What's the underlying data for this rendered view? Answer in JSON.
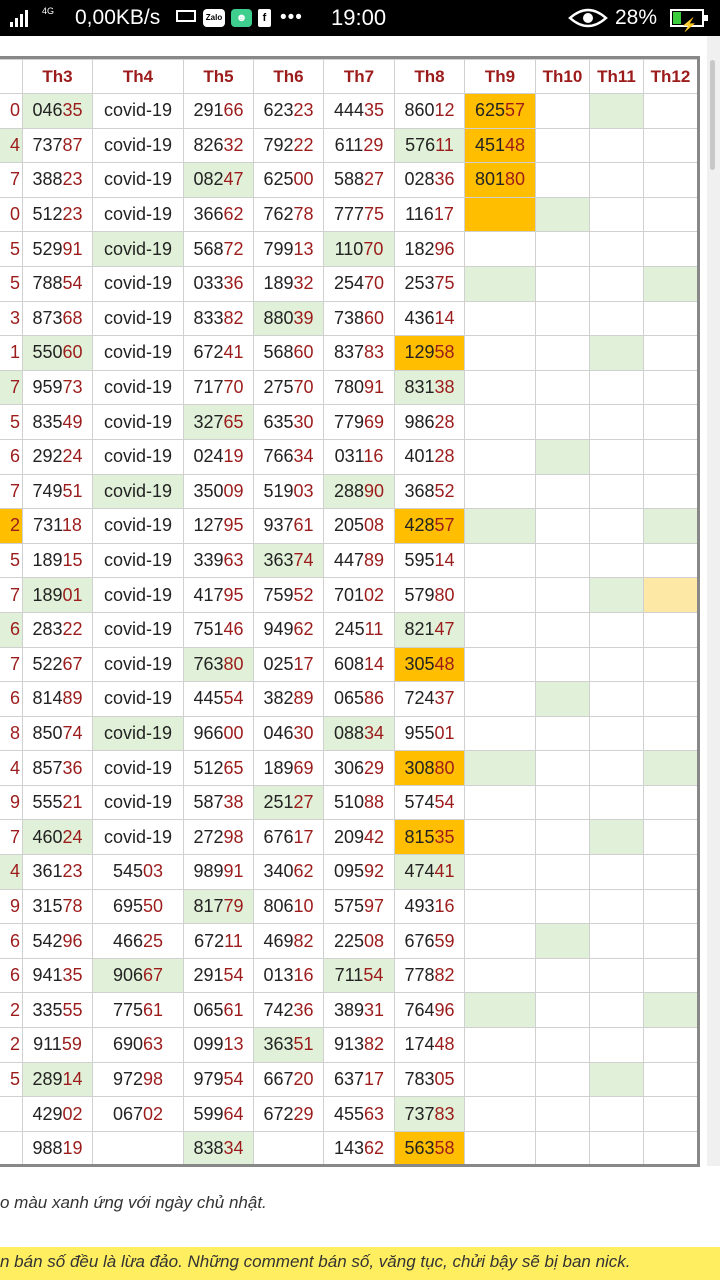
{
  "status_bar": {
    "network_type": "4G",
    "net_speed": "0,00KB/s",
    "time": "19:00",
    "battery_percent": "28%",
    "battery_level": 0.28,
    "zalo_label": "Zalo",
    "fb_label": "f",
    "more_label": "•••"
  },
  "colors": {
    "accent_red": "#9c1c1c",
    "green_cell": "#e1f0d8",
    "orange_cell": "#ffbf00",
    "yellow_cell": "#fde8a6"
  },
  "table": {
    "columns": [
      "",
      "Th3",
      "Th4",
      "Th5",
      "Th6",
      "Th7",
      "Th8",
      "Th9",
      "Th10",
      "Th11",
      "Th12"
    ],
    "rows": [
      {
        "cells": [
          "0",
          "04635",
          "covid-19",
          "29166",
          "62323",
          "44435",
          "86012",
          "62557",
          "",
          "",
          ""
        ],
        "bg": [
          "",
          "g",
          "",
          "",
          "",
          "",
          "",
          "o",
          "",
          "g",
          ""
        ]
      },
      {
        "cells": [
          "4",
          "73787",
          "covid-19",
          "82632",
          "79222",
          "61129",
          "57611",
          "45148",
          "",
          "",
          ""
        ],
        "bg": [
          "g",
          "",
          "",
          "",
          "",
          "",
          "g",
          "o",
          "",
          "",
          ""
        ]
      },
      {
        "cells": [
          "7",
          "38823",
          "covid-19",
          "08247",
          "62500",
          "58827",
          "02836",
          "80180",
          "",
          "",
          ""
        ],
        "bg": [
          "",
          "",
          "",
          "g",
          "",
          "",
          "",
          "o",
          "",
          "",
          ""
        ]
      },
      {
        "cells": [
          "0",
          "51223",
          "covid-19",
          "36662",
          "76278",
          "77775",
          "11617",
          "",
          "",
          "",
          ""
        ],
        "bg": [
          "",
          "",
          "",
          "",
          "",
          "",
          "",
          "o",
          "g",
          "",
          ""
        ]
      },
      {
        "cells": [
          "5",
          "52991",
          "covid-19",
          "56872",
          "79913",
          "11070",
          "18296",
          "",
          "",
          "",
          ""
        ],
        "bg": [
          "",
          "",
          "g",
          "",
          "",
          "g",
          "",
          "",
          "",
          "",
          ""
        ]
      },
      {
        "cells": [
          "5",
          "78854",
          "covid-19",
          "03336",
          "18932",
          "25470",
          "25375",
          "",
          "",
          "",
          ""
        ],
        "bg": [
          "",
          "",
          "",
          "",
          "",
          "",
          "",
          "g",
          "",
          "",
          "g"
        ]
      },
      {
        "cells": [
          "3",
          "87368",
          "covid-19",
          "83382",
          "88039",
          "73860",
          "43614",
          "",
          "",
          "",
          ""
        ],
        "bg": [
          "",
          "",
          "",
          "",
          "g",
          "",
          "",
          "",
          "",
          "",
          ""
        ]
      },
      {
        "cells": [
          "1",
          "55060",
          "covid-19",
          "67241",
          "56860",
          "83783",
          "12958",
          "",
          "",
          "",
          ""
        ],
        "bg": [
          "",
          "g",
          "",
          "",
          "",
          "",
          "o",
          "",
          "",
          "g",
          ""
        ]
      },
      {
        "cells": [
          "7",
          "95973",
          "covid-19",
          "71770",
          "27570",
          "78091",
          "83138",
          "",
          "",
          "",
          ""
        ],
        "bg": [
          "g",
          "",
          "",
          "",
          "",
          "",
          "g",
          "",
          "",
          "",
          ""
        ]
      },
      {
        "cells": [
          "5",
          "83549",
          "covid-19",
          "32765",
          "63530",
          "77969",
          "98628",
          "",
          "",
          "",
          ""
        ],
        "bg": [
          "",
          "",
          "",
          "g",
          "",
          "",
          "",
          "",
          "",
          "",
          ""
        ]
      },
      {
        "cells": [
          "6",
          "29224",
          "covid-19",
          "02419",
          "76634",
          "03116",
          "40128",
          "",
          "",
          "",
          ""
        ],
        "bg": [
          "",
          "",
          "",
          "",
          "",
          "",
          "",
          "",
          "g",
          "",
          ""
        ]
      },
      {
        "cells": [
          "7",
          "74951",
          "covid-19",
          "35009",
          "51903",
          "28890",
          "36852",
          "",
          "",
          "",
          ""
        ],
        "bg": [
          "",
          "",
          "g",
          "",
          "",
          "g",
          "",
          "",
          "",
          "",
          ""
        ]
      },
      {
        "cells": [
          "2",
          "73118",
          "covid-19",
          "12795",
          "93761",
          "20508",
          "42857",
          "",
          "",
          "",
          ""
        ],
        "bg": [
          "o",
          "",
          "",
          "",
          "",
          "",
          "o",
          "g",
          "",
          "",
          "g"
        ]
      },
      {
        "cells": [
          "5",
          "18915",
          "covid-19",
          "33963",
          "36374",
          "44789",
          "59514",
          "",
          "",
          "",
          ""
        ],
        "bg": [
          "",
          "",
          "",
          "",
          "g",
          "",
          "",
          "",
          "",
          "",
          ""
        ]
      },
      {
        "cells": [
          "7",
          "18901",
          "covid-19",
          "41795",
          "75952",
          "70102",
          "57980",
          "",
          "",
          "",
          ""
        ],
        "bg": [
          "",
          "g",
          "",
          "",
          "",
          "",
          "",
          "",
          "",
          "g",
          "y"
        ]
      },
      {
        "cells": [
          "6",
          "28322",
          "covid-19",
          "75146",
          "94962",
          "24511",
          "82147",
          "",
          "",
          "",
          ""
        ],
        "bg": [
          "g",
          "",
          "",
          "",
          "",
          "",
          "g",
          "",
          "",
          "",
          ""
        ]
      },
      {
        "cells": [
          "7",
          "52267",
          "covid-19",
          "76380",
          "02517",
          "60814",
          "30548",
          "",
          "",
          "",
          ""
        ],
        "bg": [
          "",
          "",
          "",
          "g",
          "",
          "",
          "o",
          "",
          "",
          "",
          ""
        ]
      },
      {
        "cells": [
          "6",
          "81489",
          "covid-19",
          "44554",
          "38289",
          "06586",
          "72437",
          "",
          "",
          "",
          ""
        ],
        "bg": [
          "",
          "",
          "",
          "",
          "",
          "",
          "",
          "",
          "g",
          "",
          ""
        ]
      },
      {
        "cells": [
          "8",
          "85074",
          "covid-19",
          "96600",
          "04630",
          "08834",
          "95501",
          "",
          "",
          "",
          ""
        ],
        "bg": [
          "",
          "",
          "g",
          "",
          "",
          "g",
          "",
          "",
          "",
          "",
          ""
        ]
      },
      {
        "cells": [
          "4",
          "85736",
          "covid-19",
          "51265",
          "18969",
          "30629",
          "30880",
          "",
          "",
          "",
          ""
        ],
        "bg": [
          "",
          "",
          "",
          "",
          "",
          "",
          "o",
          "g",
          "",
          "",
          "g"
        ]
      },
      {
        "cells": [
          "9",
          "55521",
          "covid-19",
          "58738",
          "25127",
          "51088",
          "57454",
          "",
          "",
          "",
          ""
        ],
        "bg": [
          "",
          "",
          "",
          "",
          "g",
          "",
          "",
          "",
          "",
          "",
          ""
        ]
      },
      {
        "cells": [
          "7",
          "46024",
          "covid-19",
          "27298",
          "67617",
          "20942",
          "81535",
          "",
          "",
          "",
          ""
        ],
        "bg": [
          "",
          "g",
          "",
          "",
          "",
          "",
          "o",
          "",
          "",
          "g",
          ""
        ]
      },
      {
        "cells": [
          "4",
          "36123",
          "54503",
          "98991",
          "34062",
          "09592",
          "47441",
          "",
          "",
          "",
          ""
        ],
        "bg": [
          "g",
          "",
          "",
          "",
          "",
          "",
          "g",
          "",
          "",
          "",
          ""
        ]
      },
      {
        "cells": [
          "9",
          "31578",
          "69550",
          "81779",
          "80610",
          "57597",
          "49316",
          "",
          "",
          "",
          ""
        ],
        "bg": [
          "",
          "",
          "",
          "g",
          "",
          "",
          "",
          "",
          "",
          "",
          ""
        ]
      },
      {
        "cells": [
          "6",
          "54296",
          "46625",
          "67211",
          "46982",
          "22508",
          "67659",
          "",
          "",
          "",
          ""
        ],
        "bg": [
          "",
          "",
          "",
          "",
          "",
          "",
          "",
          "",
          "g",
          "",
          ""
        ]
      },
      {
        "cells": [
          "6",
          "94135",
          "90667",
          "29154",
          "01316",
          "71154",
          "77882",
          "",
          "",
          "",
          ""
        ],
        "bg": [
          "",
          "",
          "g",
          "",
          "",
          "g",
          "",
          "",
          "",
          "",
          ""
        ]
      },
      {
        "cells": [
          "2",
          "33555",
          "77561",
          "06561",
          "74236",
          "38931",
          "76496",
          "",
          "",
          "",
          ""
        ],
        "bg": [
          "",
          "",
          "",
          "",
          "",
          "",
          "",
          "g",
          "",
          "",
          "g"
        ]
      },
      {
        "cells": [
          "2",
          "91159",
          "69063",
          "09913",
          "36351",
          "91382",
          "17448",
          "",
          "",
          "",
          ""
        ],
        "bg": [
          "",
          "",
          "",
          "",
          "g",
          "",
          "",
          "",
          "",
          "",
          ""
        ]
      },
      {
        "cells": [
          "5",
          "28914",
          "97298",
          "97954",
          "66720",
          "63717",
          "78305",
          "",
          "",
          "",
          ""
        ],
        "bg": [
          "",
          "g",
          "",
          "",
          "",
          "",
          "",
          "",
          "",
          "g",
          ""
        ]
      },
      {
        "cells": [
          "",
          "42902",
          "06702",
          "59964",
          "67229",
          "45563",
          "73783",
          "",
          "",
          "",
          ""
        ],
        "bg": [
          "",
          "",
          "",
          "",
          "",
          "",
          "g",
          "",
          "",
          "",
          ""
        ]
      },
      {
        "cells": [
          "",
          "98819",
          "",
          "83834",
          "",
          "14362",
          "56358",
          "",
          "",
          "",
          ""
        ],
        "bg": [
          "",
          "",
          "",
          "g",
          "",
          "",
          "o",
          "",
          "",
          "",
          ""
        ]
      }
    ]
  },
  "note_text": "o màu xanh ứng với ngày chủ nhật.",
  "banner_text": "n bán số đều là lừa đảo. Những comment bán số, văng tục, chửi bậy sẽ bị ban nick."
}
